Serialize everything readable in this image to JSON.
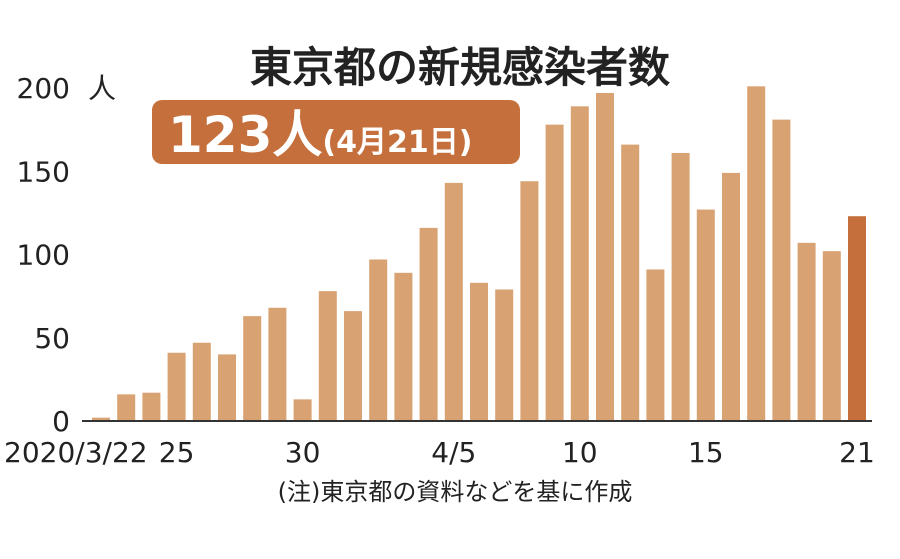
{
  "chart_data": {
    "type": "bar",
    "title": "東京都の新規感染者数",
    "highlight": {
      "value_label": "123人",
      "date_label": "(4月21日)"
    },
    "ylabel": "人",
    "ylim": [
      0,
      200
    ],
    "yticks": [
      0,
      50,
      100,
      150,
      200
    ],
    "categories": [
      "3/22",
      "3/23",
      "3/24",
      "3/25",
      "3/26",
      "3/27",
      "3/28",
      "3/29",
      "3/30",
      "3/31",
      "4/1",
      "4/2",
      "4/3",
      "4/4",
      "4/5",
      "4/6",
      "4/7",
      "4/8",
      "4/9",
      "4/10",
      "4/11",
      "4/12",
      "4/13",
      "4/14",
      "4/15",
      "4/16",
      "4/17",
      "4/18",
      "4/19",
      "4/20",
      "4/21"
    ],
    "values": [
      2,
      16,
      17,
      41,
      47,
      40,
      63,
      68,
      13,
      78,
      66,
      97,
      89,
      116,
      143,
      83,
      79,
      144,
      178,
      189,
      197,
      166,
      91,
      161,
      127,
      149,
      201,
      181,
      107,
      102,
      123
    ],
    "xtick_labels": [
      {
        "index": 0,
        "label": "2020/3/22"
      },
      {
        "index": 3,
        "label": "25"
      },
      {
        "index": 8,
        "label": "30"
      },
      {
        "index": 14,
        "label": "4/5"
      },
      {
        "index": 19,
        "label": "10"
      },
      {
        "index": 24,
        "label": "15"
      },
      {
        "index": 30,
        "label": "21"
      }
    ],
    "note": "(注)東京都の資料などを基に作成",
    "colors": {
      "bar": "#d9a273",
      "highlight_bar": "#c5703c",
      "badge": "#c5703c"
    }
  }
}
